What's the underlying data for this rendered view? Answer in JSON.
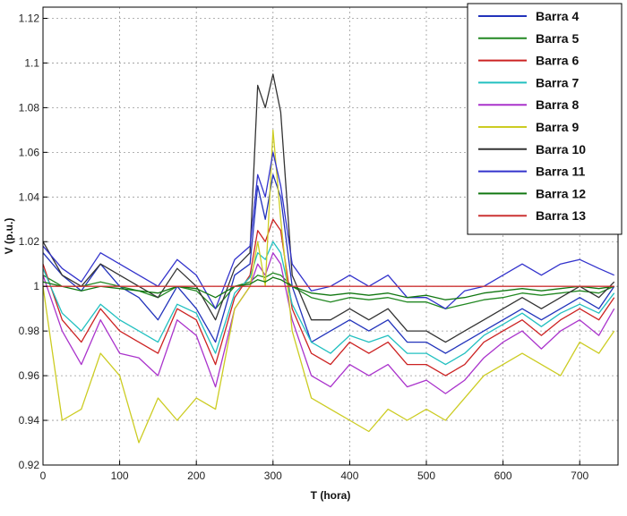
{
  "chart_data": {
    "type": "line",
    "title": "",
    "xlabel": "T (hora)",
    "ylabel": "V (p.u.)",
    "xlim": [
      0,
      750
    ],
    "ylim": [
      0.92,
      1.125
    ],
    "xticks": [
      0,
      100,
      200,
      300,
      400,
      500,
      600,
      700
    ],
    "yticks": [
      0.92,
      0.94,
      0.96,
      0.98,
      1,
      1.02,
      1.04,
      1.06,
      1.08,
      1.1,
      1.12
    ],
    "grid": true,
    "legend_position": "top-right",
    "x": [
      0,
      25,
      50,
      75,
      100,
      125,
      150,
      175,
      200,
      225,
      250,
      270,
      280,
      290,
      300,
      310,
      325,
      350,
      375,
      400,
      425,
      450,
      475,
      500,
      525,
      550,
      575,
      600,
      625,
      650,
      675,
      700,
      725,
      745
    ],
    "series": [
      {
        "name": "Barra 4",
        "color": "#2233bb",
        "values": [
          1.015,
          1.005,
          0.998,
          1.01,
          1.0,
          0.995,
          0.985,
          1.0,
          0.99,
          0.975,
          1.005,
          1.01,
          1.045,
          1.03,
          1.05,
          1.04,
          1.0,
          0.975,
          0.98,
          0.985,
          0.98,
          0.985,
          0.975,
          0.975,
          0.97,
          0.975,
          0.98,
          0.985,
          0.99,
          0.985,
          0.99,
          0.995,
          0.99,
          1.0
        ]
      },
      {
        "name": "Barra 5",
        "color": "#228822",
        "values": [
          1.005,
          1.0,
          1.0,
          1.002,
          1.0,
          0.998,
          0.995,
          1.0,
          0.998,
          0.99,
          1.0,
          1.002,
          1.005,
          1.004,
          1.006,
          1.005,
          1.0,
          0.995,
          0.993,
          0.995,
          0.994,
          0.995,
          0.993,
          0.993,
          0.99,
          0.992,
          0.994,
          0.995,
          0.997,
          0.996,
          0.997,
          0.998,
          0.997,
          1.0
        ]
      },
      {
        "name": "Barra 6",
        "color": "#cc2222",
        "values": [
          1.01,
          0.985,
          0.975,
          0.99,
          0.98,
          0.975,
          0.97,
          0.99,
          0.985,
          0.965,
          0.995,
          1.005,
          1.025,
          1.02,
          1.03,
          1.025,
          0.99,
          0.97,
          0.965,
          0.975,
          0.97,
          0.975,
          0.965,
          0.965,
          0.96,
          0.965,
          0.975,
          0.98,
          0.985,
          0.978,
          0.985,
          0.99,
          0.985,
          0.995
        ]
      },
      {
        "name": "Barra 7",
        "color": "#22c0c0",
        "values": [
          1.008,
          0.988,
          0.98,
          0.992,
          0.985,
          0.98,
          0.975,
          0.992,
          0.988,
          0.97,
          0.997,
          1.004,
          1.015,
          1.012,
          1.02,
          1.015,
          0.992,
          0.975,
          0.97,
          0.978,
          0.975,
          0.978,
          0.97,
          0.97,
          0.965,
          0.97,
          0.978,
          0.983,
          0.988,
          0.982,
          0.988,
          0.992,
          0.988,
          0.997
        ]
      },
      {
        "name": "Barra 8",
        "color": "#aa33cc",
        "values": [
          1.005,
          0.98,
          0.965,
          0.985,
          0.97,
          0.968,
          0.96,
          0.985,
          0.978,
          0.955,
          0.99,
          1.0,
          1.01,
          1.005,
          1.015,
          1.01,
          0.985,
          0.96,
          0.955,
          0.965,
          0.96,
          0.965,
          0.955,
          0.958,
          0.952,
          0.958,
          0.968,
          0.975,
          0.98,
          0.972,
          0.98,
          0.985,
          0.978,
          0.99
        ]
      },
      {
        "name": "Barra 9",
        "color": "#cccc22",
        "values": [
          1.0,
          0.94,
          0.945,
          0.97,
          0.96,
          0.93,
          0.95,
          0.94,
          0.95,
          0.945,
          0.99,
          1.0,
          1.02,
          1.0,
          1.07,
          1.03,
          0.98,
          0.95,
          0.945,
          0.94,
          0.935,
          0.945,
          0.94,
          0.945,
          0.94,
          0.95,
          0.96,
          0.965,
          0.97,
          0.965,
          0.96,
          0.975,
          0.97,
          0.98
        ]
      },
      {
        "name": "Barra 10",
        "color": "#333333",
        "values": [
          1.02,
          1.005,
          1.0,
          1.01,
          1.005,
          1.0,
          0.995,
          1.008,
          1.0,
          0.985,
          1.008,
          1.015,
          1.09,
          1.08,
          1.095,
          1.078,
          1.005,
          0.985,
          0.985,
          0.99,
          0.985,
          0.99,
          0.98,
          0.98,
          0.975,
          0.98,
          0.985,
          0.99,
          0.995,
          0.99,
          0.995,
          1.0,
          0.995,
          1.002
        ]
      },
      {
        "name": "Barra 11",
        "color": "#3333cc",
        "values": [
          1.018,
          1.008,
          1.002,
          1.015,
          1.01,
          1.005,
          1.0,
          1.012,
          1.005,
          0.99,
          1.012,
          1.018,
          1.05,
          1.04,
          1.06,
          1.045,
          1.01,
          0.998,
          1.0,
          1.005,
          1.0,
          1.005,
          0.995,
          0.995,
          0.99,
          0.998,
          1.0,
          1.005,
          1.01,
          1.005,
          1.01,
          1.012,
          1.008,
          1.005
        ]
      },
      {
        "name": "Barra 12",
        "color": "#117711",
        "values": [
          1.002,
          1.0,
          0.998,
          1.0,
          0.999,
          0.998,
          0.997,
          1.0,
          0.999,
          0.995,
          1.0,
          1.001,
          1.003,
          1.002,
          1.004,
          1.003,
          1.0,
          0.997,
          0.996,
          0.997,
          0.996,
          0.997,
          0.995,
          0.996,
          0.994,
          0.995,
          0.997,
          0.998,
          0.999,
          0.998,
          0.999,
          1.0,
          0.999,
          1.0
        ]
      },
      {
        "name": "Barra 13",
        "color": "#cc3333",
        "values": [
          1.0,
          1.0,
          1.0,
          1.0,
          1.0,
          1.0,
          1.0,
          1.0,
          1.0,
          1.0,
          1.0,
          1.0,
          1.0,
          1.0,
          1.0,
          1.0,
          1.0,
          1.0,
          1.0,
          1.0,
          1.0,
          1.0,
          1.0,
          1.0,
          1.0,
          1.0,
          1.0,
          1.0,
          1.0,
          1.0,
          1.0,
          1.0,
          1.0,
          1.0
        ]
      }
    ]
  }
}
